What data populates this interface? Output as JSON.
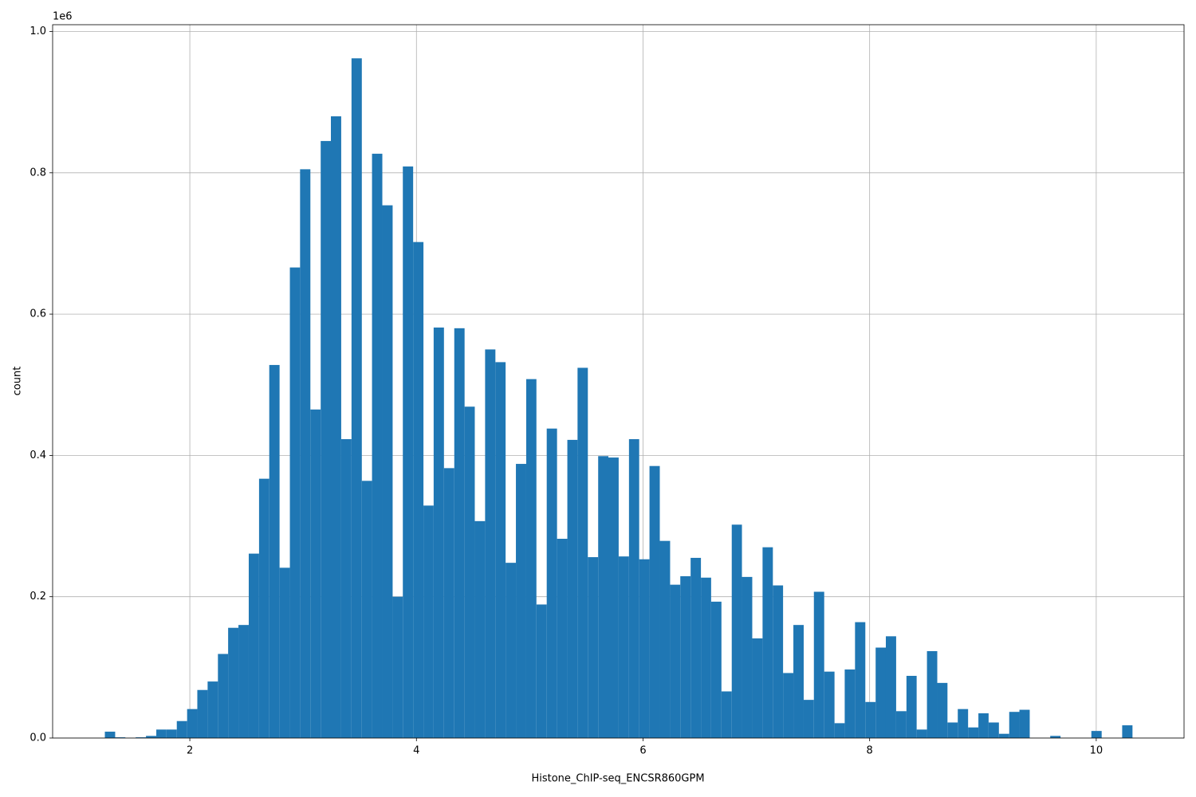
{
  "chart_data": {
    "type": "histogram",
    "xlabel": "Histone_ChIP-seq_ENCSR860GPM",
    "ylabel": "count",
    "y_offset_label": "1e6",
    "color": "#1f77b4",
    "grid": true,
    "bins": [
      1.25,
      1.341,
      1.431,
      1.522,
      1.613,
      1.704,
      1.794,
      1.885,
      1.976,
      2.066,
      2.157,
      2.248,
      2.338,
      2.429,
      2.52,
      2.611,
      2.701,
      2.792,
      2.883,
      2.973,
      3.064,
      3.155,
      3.245,
      3.336,
      3.427,
      3.518,
      3.608,
      3.699,
      3.79,
      3.88,
      3.971,
      4.062,
      4.152,
      4.243,
      4.334,
      4.425,
      4.515,
      4.606,
      4.697,
      4.787,
      4.878,
      4.969,
      5.059,
      5.15,
      5.241,
      5.332,
      5.422,
      5.513,
      5.604,
      5.694,
      5.785,
      5.876,
      5.966,
      6.057,
      6.148,
      6.239,
      6.329,
      6.42,
      6.511,
      6.601,
      6.692,
      6.783,
      6.873,
      6.964,
      7.055,
      7.146,
      7.236,
      7.327,
      7.418,
      7.508,
      7.599,
      7.69,
      7.78,
      7.871,
      7.962,
      8.053,
      8.143,
      8.234,
      8.325,
      8.415,
      8.506,
      8.597,
      8.687,
      8.778,
      8.869,
      8.96,
      9.05,
      9.141,
      9.232,
      9.322,
      9.413,
      9.504,
      9.594,
      9.685,
      9.776,
      9.867,
      9.957,
      10.048,
      10.139,
      10.229,
      10.32
    ],
    "values": [
      0.009,
      0.001,
      0,
      0.001,
      0.003,
      0.012,
      0.012,
      0.024,
      0.041,
      0.068,
      0.08,
      0.119,
      0.156,
      0.16,
      0.261,
      0.367,
      0.528,
      0.241,
      0.666,
      0.805,
      0.465,
      0.845,
      0.88,
      0.423,
      0.962,
      0.364,
      0.827,
      0.754,
      0.2,
      0.809,
      0.702,
      0.329,
      0.581,
      0.382,
      0.58,
      0.469,
      0.307,
      0.55,
      0.532,
      0.248,
      0.388,
      0.508,
      0.189,
      0.438,
      0.282,
      0.422,
      0.524,
      0.256,
      0.399,
      0.397,
      0.257,
      0.423,
      0.253,
      0.385,
      0.279,
      0.217,
      0.229,
      0.255,
      0.227,
      0.193,
      0.066,
      0.302,
      0.228,
      0.141,
      0.27,
      0.216,
      0.092,
      0.16,
      0.054,
      0.207,
      0.094,
      0.021,
      0.097,
      0.164,
      0.051,
      0.128,
      0.144,
      0.038,
      0.088,
      0.012,
      0.123,
      0.078,
      0.022,
      0.041,
      0.015,
      0.035,
      0.022,
      0.006,
      0.037,
      0.04,
      0,
      0,
      0.003,
      0,
      0,
      0,
      0.01,
      0,
      0,
      0.018
    ],
    "xlim": [
      0.789,
      10.775
    ],
    "xticks": [
      2,
      4,
      6,
      8,
      10
    ],
    "ylim": [
      0,
      1.0096
    ],
    "yticks": [
      {
        "value": 0,
        "label": "0.0"
      },
      0.2,
      0.4,
      0.6,
      0.8,
      {
        "value": 1,
        "label": "1.0"
      }
    ]
  }
}
